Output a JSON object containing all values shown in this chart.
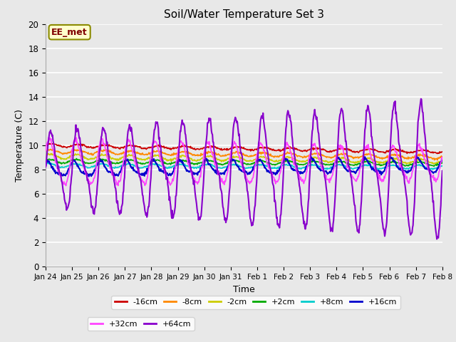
{
  "title": "Soil/Water Temperature Set 3",
  "xlabel": "Time",
  "ylabel": "Temperature (C)",
  "ylim": [
    0,
    20
  ],
  "background_color": "#e8e8e8",
  "plot_bg_color": "#e8e8e8",
  "grid_color": "white",
  "annotation_text": "EE_met",
  "annotation_bg": "#ffffcc",
  "annotation_border": "#8b8b00",
  "series": {
    "-16cm": {
      "color": "#cc0000",
      "base": 10.0,
      "amp": 0.12,
      "trend": -0.035,
      "phase": 0.0,
      "period": 1.0,
      "noise": 0.04
    },
    "-8cm": {
      "color": "#ff8800",
      "base": 9.5,
      "amp": 0.15,
      "trend": -0.032,
      "phase": 0.2,
      "period": 1.0,
      "noise": 0.04
    },
    "-2cm": {
      "color": "#cccc00",
      "base": 9.1,
      "amp": 0.18,
      "trend": -0.028,
      "phase": 0.4,
      "period": 1.0,
      "noise": 0.04
    },
    "+2cm": {
      "color": "#00aa00",
      "base": 8.7,
      "amp": 0.15,
      "trend": -0.015,
      "phase": 0.6,
      "period": 1.0,
      "noise": 0.03
    },
    "+8cm": {
      "color": "#00cccc",
      "base": 8.35,
      "amp": 0.15,
      "trend": -0.01,
      "phase": 0.8,
      "period": 1.0,
      "noise": 0.03
    },
    "+16cm": {
      "color": "#0000cc",
      "base": 8.0,
      "amp": 0.55,
      "trend": 0.02,
      "phase": 1.0,
      "period": 1.0,
      "noise": 0.06
    },
    "+32cm": {
      "color": "#ff44ff",
      "base": 8.5,
      "amp": 1.8,
      "trend": -0.005,
      "phase": 0.5,
      "period": 1.0,
      "noise": 0.1
    },
    "+64cm": {
      "color": "#8800cc",
      "base": 8.0,
      "amp": 5.0,
      "trend": 0.0,
      "phase": 0.0,
      "period": 1.0,
      "noise": 0.15
    }
  },
  "xtick_labels": [
    "Jan 24",
    "Jan 25",
    "Jan 26",
    "Jan 27",
    "Jan 28",
    "Jan 29",
    "Jan 30",
    "Jan 31",
    "Feb 1",
    "Feb 2",
    "Feb 3",
    "Feb 4",
    "Feb 5",
    "Feb 6",
    "Feb 7",
    "Feb 8"
  ],
  "n_points": 800
}
